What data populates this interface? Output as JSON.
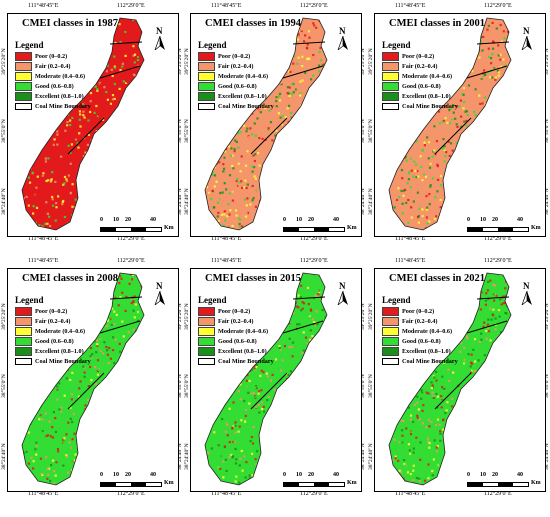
{
  "colors": {
    "poor": "#e31a1c",
    "fair": "#f5956b",
    "moderate": "#ffff33",
    "good": "#33dd33",
    "excellent": "#1a8f1a",
    "boundary": "#000000"
  },
  "legend": {
    "title": "Legend",
    "items": [
      {
        "label": "Poor (0–0.2)",
        "key": "poor"
      },
      {
        "label": "Fair (0.2–0.4)",
        "key": "fair"
      },
      {
        "label": "Moderate (0.4–0.6)",
        "key": "moderate"
      },
      {
        "label": "Good (0.6–0.8)",
        "key": "good"
      },
      {
        "label": "Excellent (0.8–1.0)",
        "key": "excellent"
      },
      {
        "label": "Coal Mine Boundary",
        "key": "boundary"
      }
    ]
  },
  "north_label": "N",
  "coords": {
    "lon_left": "111°48′45″E",
    "lon_right": "112°29′0″E",
    "lat_top": "39°25′20″N",
    "lat_mid": "38°55′0″N",
    "lat_bottom": "38°24′40″N"
  },
  "scale": {
    "ticks": [
      "0",
      "10",
      "20",
      "40"
    ],
    "unit": "Km"
  },
  "panels": [
    {
      "title": "CMEI classes in 1987",
      "dominant": "poor"
    },
    {
      "title": "CMEI classes in 1994",
      "dominant": "fair"
    },
    {
      "title": "CMEI classes in 2001",
      "dominant": "fair"
    },
    {
      "title": "CMEI classes in 2008",
      "dominant": "good"
    },
    {
      "title": "CMEI classes in 2015",
      "dominant": "good"
    },
    {
      "title": "CMEI classes in 2021",
      "dominant": "good"
    }
  ]
}
